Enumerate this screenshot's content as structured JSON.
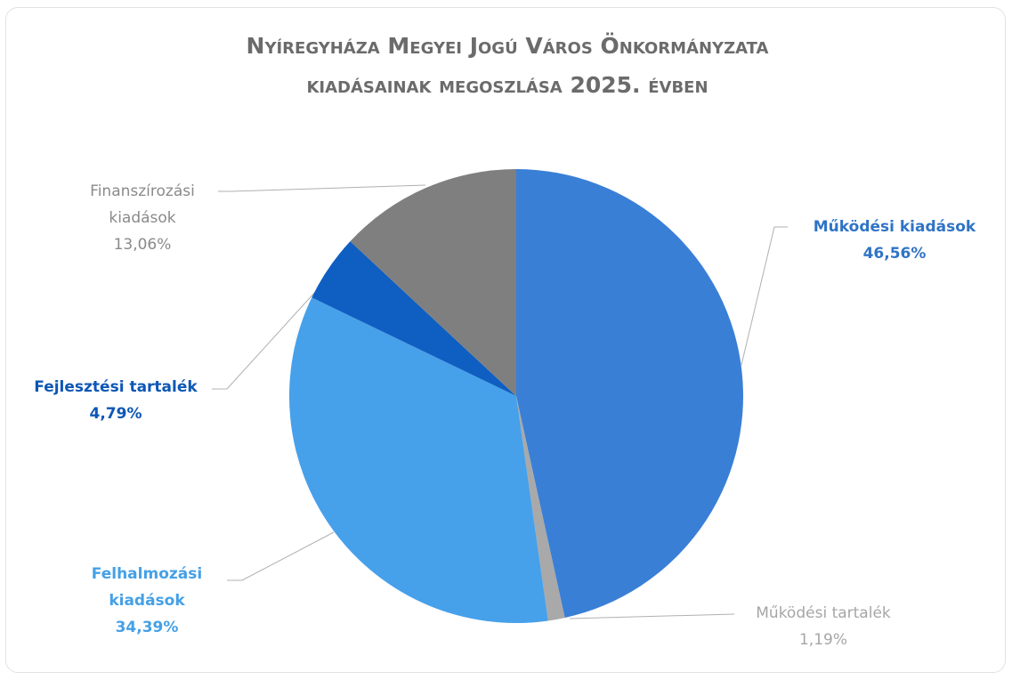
{
  "chart_data": {
    "type": "pie",
    "title": "Nyíregyháza Megyei Jogú Város Önkormányzata kiadásainak megoszlása 2025. évben",
    "categories": [
      "Működési kiadások",
      "Működési tartalék",
      "Felhalmozási kiadások",
      "Fejlesztési tartalék",
      "Finanszírozási kiadások"
    ],
    "values": [
      46.56,
      1.19,
      34.39,
      4.79,
      13.06
    ],
    "value_labels": [
      "46,56%",
      "1,19%",
      "34,39%",
      "4,79%",
      "13,06%"
    ],
    "colors": [
      "#3a7fd6",
      "#a9a9a9",
      "#47a0ea",
      "#0f5fc2",
      "#7f7f7f"
    ]
  }
}
